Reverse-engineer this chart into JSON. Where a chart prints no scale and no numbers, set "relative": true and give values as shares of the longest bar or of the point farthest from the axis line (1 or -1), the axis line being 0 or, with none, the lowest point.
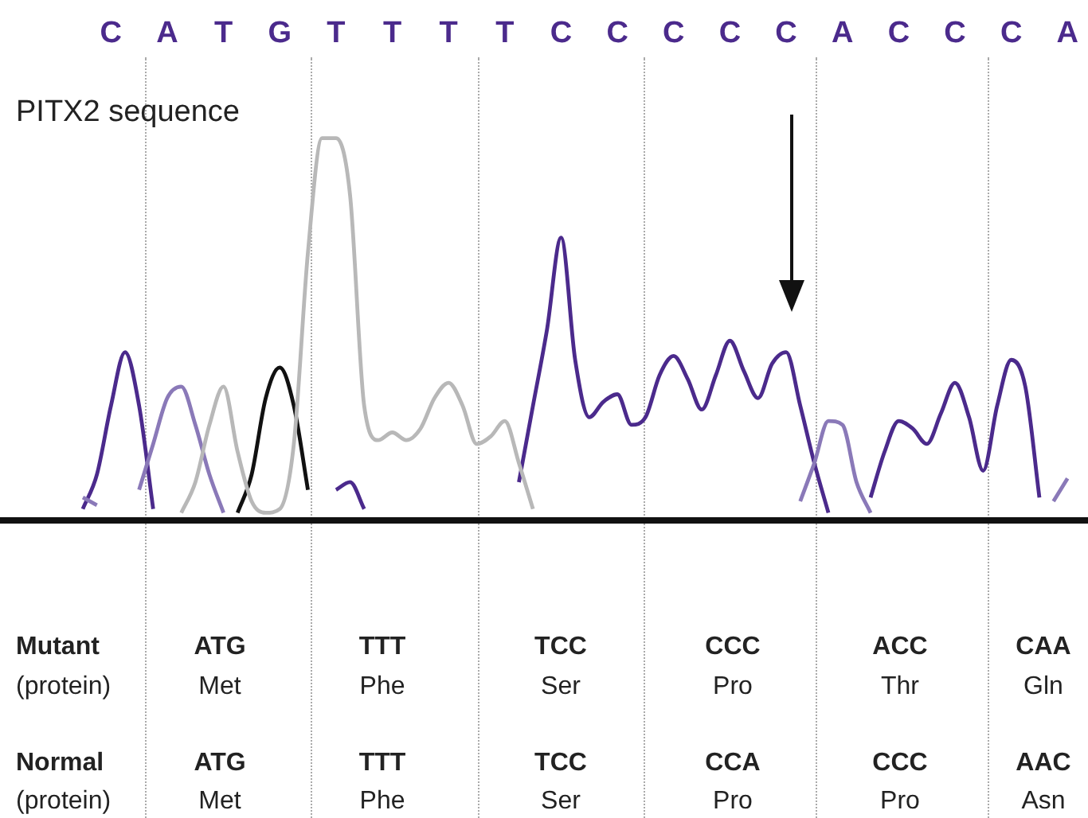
{
  "chart_data": {
    "type": "line",
    "relative": true,
    "title": "PITX2 sequence",
    "categories": [
      null,
      null,
      "C",
      null,
      null,
      null,
      "A",
      null,
      null,
      null,
      "T",
      null,
      null,
      null,
      "G",
      null,
      null,
      null,
      "T",
      null,
      null,
      null,
      "T",
      null,
      null,
      null,
      "T",
      null,
      null,
      null,
      "T",
      null,
      null,
      null,
      "C",
      null,
      null,
      null,
      "C",
      null,
      null,
      null,
      "C",
      null,
      null,
      null,
      "C",
      null,
      null,
      null,
      "C",
      null,
      null,
      null,
      "A",
      null,
      null,
      null,
      "C",
      null,
      null,
      null,
      "C",
      null,
      null,
      null,
      "C",
      null,
      null,
      null,
      "A"
    ],
    "grid": false,
    "legend": false,
    "marker": "none",
    "line_style": "solid",
    "series": [
      {
        "color": "#b8b8b8",
        "values": [
          null,
          null,
          null,
          null,
          null,
          null,
          null,
          0.02,
          0.1,
          0.25,
          0.35,
          0.18,
          0.05,
          0.02,
          0.03,
          0.2,
          0.7,
          1,
          1,
          0.85,
          0.3,
          0.21,
          0.23,
          0.21,
          0.24,
          0.32,
          0.36,
          0.3,
          0.2,
          0.22,
          0.26,
          0.15,
          0.03,
          null,
          null,
          null,
          null,
          null,
          null,
          null,
          null,
          null,
          null,
          null,
          null,
          null,
          null,
          null,
          null,
          null,
          null,
          null,
          null,
          null,
          null,
          null,
          null,
          null,
          null,
          null,
          null,
          null,
          null,
          null,
          null,
          null,
          null,
          null,
          null,
          null,
          null
        ]
      },
      {
        "color": "#8a79b8",
        "values": [
          0.06,
          0.04,
          null,
          null,
          0.08,
          0.2,
          0.32,
          0.35,
          0.25,
          0.12,
          0.02,
          null,
          null,
          null,
          null,
          null,
          null,
          null,
          null,
          null,
          null,
          null,
          null,
          null,
          null,
          null,
          null,
          null,
          null,
          null,
          null,
          null,
          null,
          null,
          null,
          null,
          null,
          null,
          null,
          null,
          null,
          null,
          null,
          null,
          null,
          null,
          null,
          null,
          null,
          null,
          null,
          0.05,
          0.15,
          0.26,
          0.25,
          0.1,
          0.02,
          null,
          null,
          null,
          null,
          null,
          null,
          null,
          null,
          null,
          null,
          null,
          null,
          0.05,
          0.11
        ]
      },
      {
        "color": "#111111",
        "values": [
          null,
          null,
          null,
          null,
          null,
          null,
          null,
          null,
          null,
          null,
          null,
          0.02,
          0.12,
          0.32,
          0.4,
          0.3,
          0.08,
          null,
          null,
          null,
          null,
          null,
          null,
          null,
          null,
          null,
          null,
          null,
          null,
          null,
          null,
          null,
          null,
          null,
          null,
          null,
          null,
          null,
          null,
          null,
          null,
          null,
          null,
          null,
          null,
          null,
          null,
          null,
          null,
          null,
          null,
          null,
          null,
          null,
          null,
          null,
          null,
          null,
          null,
          null,
          null,
          null,
          null,
          null,
          null,
          null,
          null,
          null,
          null,
          null,
          null
        ]
      },
      {
        "color": "#4b2a8c",
        "values": [
          0.03,
          0.12,
          0.3,
          0.44,
          0.3,
          0.03,
          null,
          null,
          null,
          null,
          null,
          null,
          null,
          null,
          null,
          null,
          null,
          null,
          0.08,
          0.1,
          0.03,
          null,
          null,
          null,
          null,
          null,
          null,
          null,
          null,
          null,
          null,
          0.1,
          0.3,
          0.5,
          0.74,
          0.42,
          0.27,
          0.31,
          0.33,
          0.25,
          0.27,
          0.38,
          0.43,
          0.37,
          0.29,
          0.38,
          0.47,
          0.39,
          0.32,
          0.41,
          0.44,
          0.3,
          0.15,
          0.02,
          null,
          null,
          0.06,
          0.18,
          0.26,
          0.24,
          0.2,
          0.28,
          0.36,
          0.27,
          0.13,
          0.3,
          0.42,
          0.35,
          0.06,
          null,
          null
        ]
      }
    ],
    "annotations": [
      "Mutant",
      "ATG",
      "TTT",
      "TCC",
      "CCC",
      "ACC",
      "CAA",
      "(protein)",
      "Met",
      "Phe",
      "Ser",
      "Pro",
      "Thr",
      "Gln",
      "Normal",
      "ATG",
      "TTT",
      "TCC",
      "CCA",
      "CCC",
      "AAC",
      "(protein)",
      "Met",
      "Phe",
      "Ser",
      "Pro",
      "Pro",
      "Asn"
    ]
  }
}
